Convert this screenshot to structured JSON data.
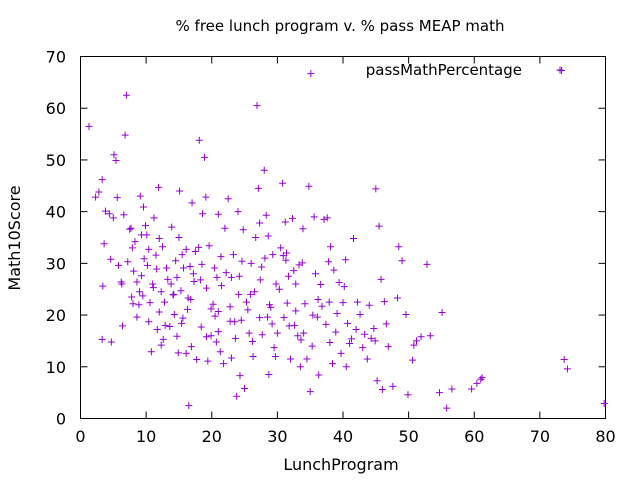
{
  "chart_data": {
    "type": "scatter",
    "title": "% free lunch program v. %  pass MEAP math",
    "xlabel": "LunchProgram",
    "ylabel": "Math10Score",
    "xlim": [
      0,
      80
    ],
    "ylim": [
      0,
      70
    ],
    "xticks": [
      0,
      10,
      20,
      30,
      40,
      50,
      60,
      70,
      80
    ],
    "yticks": [
      0,
      10,
      20,
      30,
      40,
      50,
      60,
      70
    ],
    "grid": false,
    "legend_position": "top-right",
    "colors": {
      "series": "#9400d3"
    },
    "series": [
      {
        "name": "passMathPercentage",
        "marker": "plus",
        "points": [
          [
            1.3,
            56.5
          ],
          [
            2.3,
            42.8
          ],
          [
            2.8,
            43.8
          ],
          [
            3.3,
            46.2
          ],
          [
            3.4,
            25.6
          ],
          [
            3.6,
            33.8
          ],
          [
            3.8,
            40.1
          ],
          [
            3.3,
            15.3
          ],
          [
            4.7,
            14.8
          ],
          [
            4.4,
            39.6
          ],
          [
            4.6,
            30.8
          ],
          [
            5.0,
            38.8
          ],
          [
            5.1,
            51.0
          ],
          [
            5.4,
            49.9
          ],
          [
            5.6,
            42.7
          ],
          [
            5.8,
            29.6
          ],
          [
            6.2,
            26.4
          ],
          [
            6.4,
            17.9
          ],
          [
            6.6,
            39.4
          ],
          [
            6.8,
            54.8
          ],
          [
            7.0,
            62.5
          ],
          [
            7.2,
            30.3
          ],
          [
            7.5,
            36.6
          ],
          [
            7.7,
            36.8
          ],
          [
            7.8,
            23.5
          ],
          [
            8.0,
            22.2
          ],
          [
            8.1,
            28.5
          ],
          [
            8.3,
            34.2
          ],
          [
            8.6,
            26.4
          ],
          [
            8.9,
            22.0
          ],
          [
            9.1,
            43.0
          ],
          [
            9.3,
            35.5
          ],
          [
            9.5,
            23.7
          ],
          [
            9.7,
            30.9
          ],
          [
            9.9,
            37.3
          ],
          [
            10.2,
            29.6
          ],
          [
            10.4,
            32.7
          ],
          [
            10.6,
            22.4
          ],
          [
            10.8,
            12.9
          ],
          [
            11.0,
            26.0
          ],
          [
            11.2,
            38.8
          ],
          [
            11.5,
            31.6
          ],
          [
            11.7,
            17.2
          ],
          [
            12.0,
            20.6
          ],
          [
            12.3,
            24.5
          ],
          [
            12.5,
            33.2
          ],
          [
            12.6,
            15.3
          ],
          [
            12.8,
            22.5
          ],
          [
            13.1,
            29.1
          ],
          [
            13.3,
            26.9
          ],
          [
            13.6,
            17.8
          ],
          [
            13.9,
            37.0
          ],
          [
            14.1,
            23.9
          ],
          [
            14.3,
            20.1
          ],
          [
            14.5,
            30.5
          ],
          [
            14.7,
            27.3
          ],
          [
            14.9,
            12.7
          ],
          [
            15.1,
            44.0
          ],
          [
            15.3,
            24.7
          ],
          [
            15.4,
            18.4
          ],
          [
            15.5,
            31.7
          ],
          [
            15.7,
            29.1
          ],
          [
            16.1,
            32.7
          ],
          [
            16.3,
            21.1
          ],
          [
            16.4,
            23.3
          ],
          [
            16.5,
            2.5
          ],
          [
            16.7,
            29.4
          ],
          [
            16.9,
            13.9
          ],
          [
            17.3,
            26.5
          ],
          [
            17.5,
            32.3
          ],
          [
            17.7,
            11.4
          ],
          [
            18.1,
            53.8
          ],
          [
            18.3,
            26.8
          ],
          [
            18.5,
            29.8
          ],
          [
            18.6,
            39.6
          ],
          [
            18.9,
            50.5
          ],
          [
            19.1,
            42.8
          ],
          [
            19.2,
            25.2
          ],
          [
            19.4,
            11.1
          ],
          [
            19.6,
            33.4
          ],
          [
            19.9,
            16.0
          ],
          [
            20.2,
            22.1
          ],
          [
            20.4,
            29.1
          ],
          [
            20.7,
            14.8
          ],
          [
            21.0,
            20.7
          ],
          [
            21.3,
            12.9
          ],
          [
            21.5,
            25.7
          ],
          [
            21.8,
            10.6
          ],
          [
            22.0,
            36.8
          ],
          [
            22.2,
            28.2
          ],
          [
            22.5,
            42.5
          ],
          [
            22.8,
            18.8
          ],
          [
            23.0,
            27.3
          ],
          [
            23.3,
            31.7
          ],
          [
            23.6,
            15.5
          ],
          [
            23.8,
            4.3
          ],
          [
            24.1,
            24.0
          ],
          [
            24.3,
            8.3
          ],
          [
            24.5,
            19.0
          ],
          [
            24.8,
            36.5
          ],
          [
            25.0,
            5.8
          ],
          [
            25.3,
            22.5
          ],
          [
            25.5,
            21.0
          ],
          [
            25.7,
            16.5
          ],
          [
            26.0,
            30.0
          ],
          [
            26.3,
            12.0
          ],
          [
            26.5,
            24.5
          ],
          [
            26.7,
            35.0
          ],
          [
            26.9,
            60.5
          ],
          [
            27.1,
            44.5
          ],
          [
            27.3,
            37.8
          ],
          [
            27.4,
            26.8
          ],
          [
            27.7,
            16.2
          ],
          [
            28.0,
            48.0
          ],
          [
            28.3,
            39.3
          ],
          [
            28.5,
            19.6
          ],
          [
            28.7,
            8.5
          ],
          [
            29.0,
            21.5
          ],
          [
            29.3,
            31.7
          ],
          [
            29.5,
            13.7
          ],
          [
            29.8,
            26.0
          ],
          [
            30.0,
            16.5
          ],
          [
            30.3,
            25.0
          ],
          [
            30.5,
            33.0
          ],
          [
            30.8,
            45.5
          ],
          [
            31.0,
            19.5
          ],
          [
            31.3,
            30.6
          ],
          [
            31.5,
            22.3
          ],
          [
            31.8,
            17.9
          ],
          [
            32.0,
            11.5
          ],
          [
            32.3,
            38.7
          ],
          [
            32.5,
            28.6
          ],
          [
            32.8,
            20.8
          ],
          [
            33.1,
            16.0
          ],
          [
            33.3,
            29.7
          ],
          [
            33.5,
            10.0
          ],
          [
            33.8,
            30.1
          ],
          [
            34.0,
            16.5
          ],
          [
            34.2,
            22.2
          ],
          [
            34.5,
            11.5
          ],
          [
            34.8,
            44.9
          ],
          [
            35.1,
            66.7
          ],
          [
            35.0,
            5.2
          ],
          [
            35.3,
            14.0
          ],
          [
            35.6,
            39.0
          ],
          [
            35.8,
            28.0
          ],
          [
            36.1,
            19.6
          ],
          [
            36.3,
            8.4
          ],
          [
            36.6,
            25.9
          ],
          [
            36.8,
            21.7
          ],
          [
            37.1,
            38.5
          ],
          [
            37.4,
            18.2
          ],
          [
            37.6,
            38.8
          ],
          [
            37.9,
            22.5
          ],
          [
            38.1,
            33.2
          ],
          [
            38.4,
            10.6
          ],
          [
            38.6,
            28.7
          ],
          [
            38.9,
            16.7
          ],
          [
            39.1,
            20.3
          ],
          [
            39.4,
            26.3
          ],
          [
            39.7,
            12.6
          ],
          [
            40.0,
            22.4
          ],
          [
            40.2,
            25.5
          ],
          [
            40.5,
            10.0
          ],
          [
            40.7,
            18.4
          ],
          [
            41.0,
            14.5
          ],
          [
            41.3,
            15.4
          ],
          [
            41.6,
            34.8
          ],
          [
            42.0,
            17.2
          ],
          [
            42.2,
            22.5
          ],
          [
            42.6,
            20.1
          ],
          [
            43.0,
            13.7
          ],
          [
            43.3,
            16.3
          ],
          [
            43.7,
            11.5
          ],
          [
            44.0,
            21.9
          ],
          [
            44.3,
            15.5
          ],
          [
            44.7,
            17.4
          ],
          [
            44.9,
            15.0
          ],
          [
            45.0,
            44.4
          ],
          [
            45.2,
            7.3
          ],
          [
            45.5,
            37.2
          ],
          [
            45.8,
            26.9
          ],
          [
            46.0,
            5.6
          ],
          [
            46.3,
            22.6
          ],
          [
            46.6,
            18.3
          ],
          [
            46.9,
            13.9
          ],
          [
            47.6,
            6.2
          ],
          [
            48.3,
            23.3
          ],
          [
            48.5,
            33.2
          ],
          [
            49.0,
            30.5
          ],
          [
            49.6,
            20.1
          ],
          [
            49.9,
            4.6
          ],
          [
            50.6,
            11.3
          ],
          [
            50.8,
            14.2
          ],
          [
            51.2,
            15.0
          ],
          [
            51.9,
            15.8
          ],
          [
            52.8,
            29.8
          ],
          [
            53.3,
            16.0
          ],
          [
            54.7,
            5.0
          ],
          [
            55.1,
            20.5
          ],
          [
            55.8,
            2.0
          ],
          [
            56.6,
            5.7
          ],
          [
            59.6,
            5.7
          ],
          [
            60.4,
            6.8
          ],
          [
            61.0,
            7.6
          ],
          [
            61.2,
            7.9
          ],
          [
            73.3,
            67.3
          ],
          [
            73.7,
            11.4
          ],
          [
            74.2,
            9.6
          ],
          [
            79.8,
            2.9
          ],
          [
            6.3,
            26.0
          ],
          [
            9.0,
            24.5
          ],
          [
            11.1,
            25.3
          ],
          [
            13.8,
            26.0
          ],
          [
            16.8,
            23.0
          ],
          [
            19.9,
            21.2
          ],
          [
            22.8,
            21.6
          ],
          [
            25.9,
            24.0
          ],
          [
            28.8,
            22.0
          ],
          [
            31.7,
            27.5
          ],
          [
            8.6,
            19.6
          ],
          [
            10.4,
            18.7
          ],
          [
            12.9,
            18.0
          ],
          [
            15.6,
            19.4
          ],
          [
            18.4,
            17.7
          ],
          [
            20.5,
            19.8
          ],
          [
            23.5,
            18.7
          ],
          [
            27.3,
            19.5
          ],
          [
            29.2,
            18.3
          ],
          [
            33.6,
            15.2
          ],
          [
            9.3,
            27.6
          ],
          [
            11.6,
            28.9
          ],
          [
            14.2,
            24.0
          ],
          [
            17.2,
            28.0
          ],
          [
            20.8,
            27.3
          ],
          [
            24.2,
            27.5
          ],
          [
            27.6,
            29.3
          ],
          [
            30.9,
            31.5
          ],
          [
            32.8,
            26.0
          ],
          [
            35.4,
            20.0
          ],
          [
            7.9,
            33.0
          ],
          [
            10.1,
            35.5
          ],
          [
            12.0,
            34.8
          ],
          [
            15.0,
            35.0
          ],
          [
            18.0,
            33.1
          ],
          [
            21.4,
            31.3
          ],
          [
            24.6,
            30.4
          ],
          [
            28.1,
            31.0
          ],
          [
            31.4,
            32.0
          ],
          [
            36.2,
            23.0
          ],
          [
            12.3,
            14.2
          ],
          [
            14.7,
            15.9
          ],
          [
            16.1,
            12.6
          ],
          [
            19.2,
            15.8
          ],
          [
            21.0,
            16.8
          ],
          [
            23.0,
            11.7
          ],
          [
            26.2,
            14.9
          ],
          [
            29.7,
            12.0
          ],
          [
            32.6,
            18.0
          ],
          [
            38.0,
            14.7
          ],
          [
            9.6,
            40.9
          ],
          [
            11.9,
            44.7
          ],
          [
            17.0,
            41.7
          ],
          [
            21.0,
            39.5
          ],
          [
            24.0,
            40.0
          ],
          [
            28.6,
            35.3
          ],
          [
            31.2,
            38.0
          ],
          [
            33.9,
            36.7
          ],
          [
            37.8,
            30.3
          ],
          [
            40.4,
            30.7
          ]
        ]
      }
    ]
  }
}
